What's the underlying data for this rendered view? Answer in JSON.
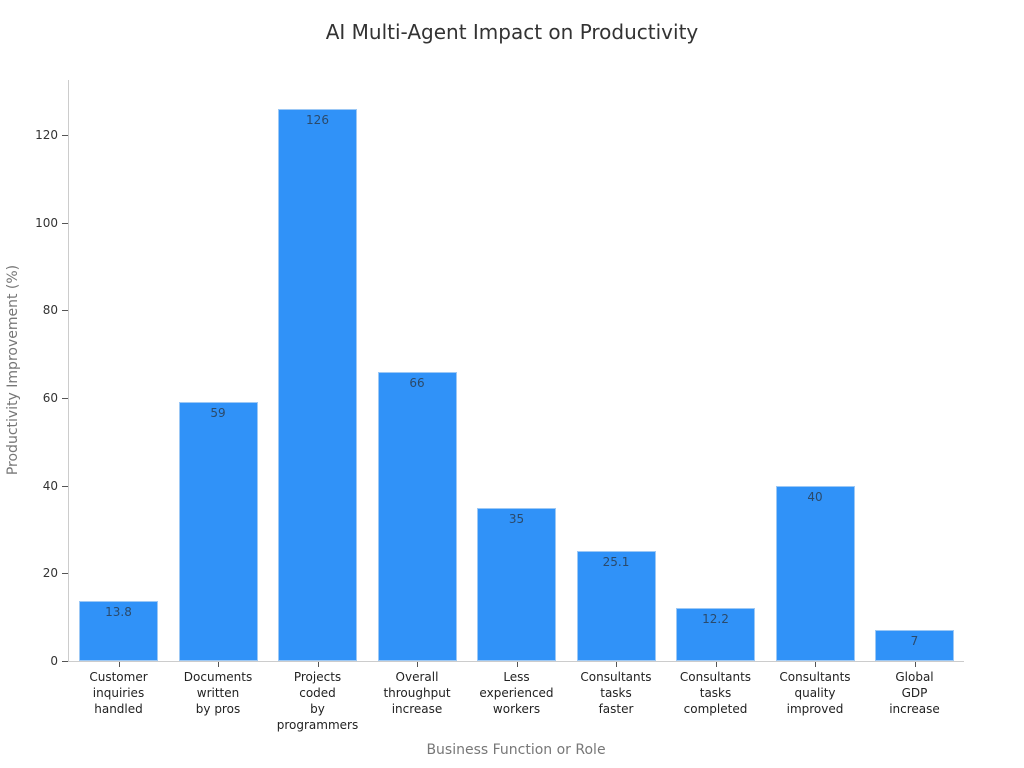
{
  "chart_data": {
    "type": "bar",
    "title": "AI Multi-Agent Impact on Productivity",
    "xlabel": "Business Function or Role",
    "ylabel": "Productivity Improvement (%)",
    "ylim": [
      0,
      132
    ],
    "yticks": [
      0,
      20,
      40,
      60,
      80,
      100,
      120
    ],
    "grid": false,
    "legend": null,
    "bar_color": "#3092f8",
    "categories": [
      "Customer\ninquiries\nhandled",
      "Documents\nwritten\nby pros",
      "Projects\ncoded\nby\nprogrammers",
      "Overall\nthroughput\nincrease",
      "Less\nexperienced\nworkers",
      "Consultants\ntasks\nfaster",
      "Consultants\ntasks\ncompleted",
      "Consultants\nquality\nimproved",
      "Global\nGDP\nincrease"
    ],
    "values": [
      13.8,
      59,
      126,
      66,
      35,
      25.1,
      12.2,
      40,
      7
    ],
    "value_labels": [
      "13.8",
      "59",
      "126",
      "66",
      "35",
      "25.1",
      "12.2",
      "40",
      "7"
    ]
  }
}
